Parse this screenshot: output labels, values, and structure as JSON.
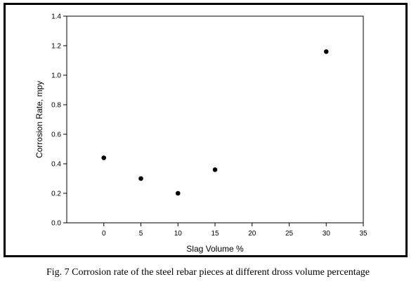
{
  "caption": "Fig. 7 Corrosion rate of the steel rebar pieces at different dross volume percentage",
  "chart_data": {
    "type": "scatter",
    "title": "",
    "xlabel": "Slag Volume %",
    "ylabel": "Corrosion Rate, mpy",
    "xlim": [
      -5,
      35
    ],
    "ylim": [
      0,
      1.4
    ],
    "xticks": [
      "0",
      "5",
      "10",
      "15",
      "20",
      "25",
      "30",
      "35"
    ],
    "yticks": [
      "0.0",
      "0.2",
      "0.4",
      "0.6",
      "0.8",
      "1.0",
      "1.2",
      "1.4"
    ],
    "grid": false,
    "legend": "none",
    "series": [
      {
        "x": [
          0,
          5,
          10,
          15,
          30
        ],
        "y": [
          0.44,
          0.3,
          0.2,
          0.36,
          1.16
        ]
      }
    ],
    "colors": {
      "marker": "#000000",
      "axis": "#000000",
      "frame": "#000000"
    }
  }
}
